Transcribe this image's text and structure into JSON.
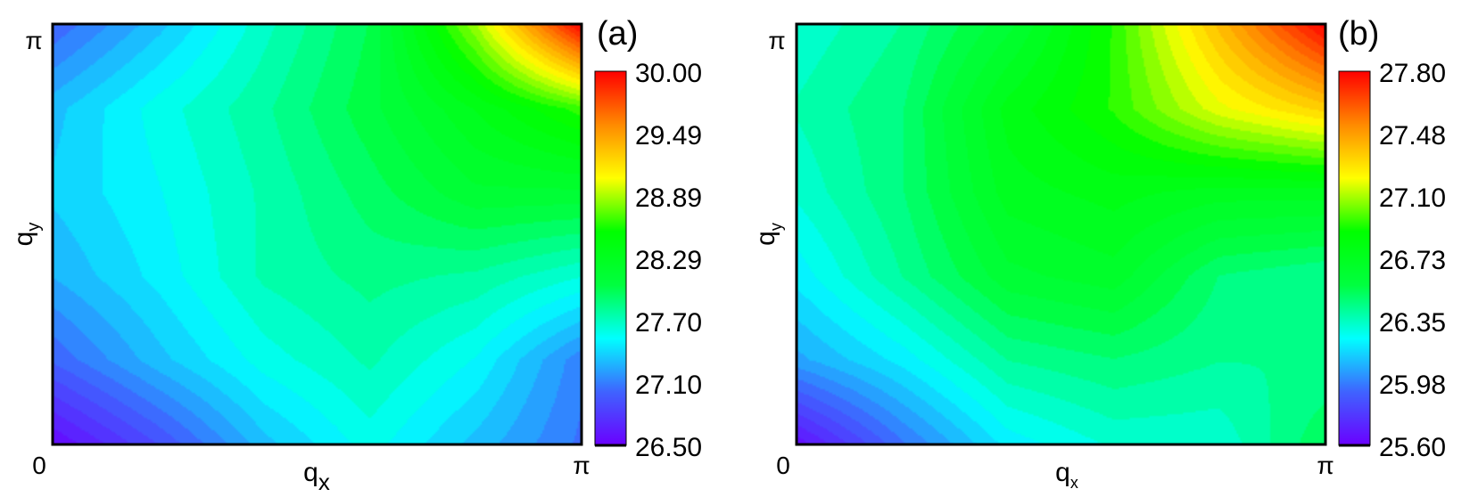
{
  "chart_data": [
    {
      "type": "heatmap",
      "panel_label": "(a)",
      "xlabel": "q",
      "xlabel_sub": "x",
      "ylabel": "q",
      "ylabel_sub": "y",
      "x_ticks": [
        "0",
        "π"
      ],
      "y_ticks": [
        "0",
        "π"
      ],
      "xlim": [
        0,
        3.1416
      ],
      "ylim": [
        0,
        3.1416
      ],
      "colorbar_ticks": [
        "30.00",
        "29.49",
        "28.89",
        "28.29",
        "27.70",
        "27.10",
        "26.50"
      ],
      "value_range": [
        26.5,
        30.0
      ],
      "colormap": [
        "#6a00ff",
        "#3f63ff",
        "#00ffff",
        "#00ff3f",
        "#00ff00",
        "#ffff00",
        "#ff8a00",
        "#ff0000"
      ],
      "x": [
        0,
        0.6283,
        1.2566,
        1.885,
        2.5133,
        3.1416
      ],
      "y": [
        0,
        0.6283,
        1.2566,
        1.885,
        2.5133,
        3.1416
      ],
      "z": [
        [
          26.55,
          26.9,
          27.3,
          27.55,
          27.3,
          27.05
        ],
        [
          27.0,
          27.3,
          27.55,
          27.7,
          27.5,
          27.1
        ],
        [
          27.25,
          27.45,
          27.7,
          27.8,
          27.75,
          27.6
        ],
        [
          27.35,
          27.5,
          27.7,
          27.9,
          28.1,
          28.1
        ],
        [
          27.3,
          27.55,
          27.75,
          28.0,
          28.3,
          28.6
        ],
        [
          27.0,
          27.3,
          27.65,
          27.95,
          28.8,
          30.0
        ]
      ]
    },
    {
      "type": "heatmap",
      "panel_label": "(b)",
      "xlabel": "q",
      "xlabel_sub": "x",
      "ylabel": "q",
      "ylabel_sub": "y",
      "x_ticks": [
        "0",
        "π"
      ],
      "y_ticks": [
        "0",
        "π"
      ],
      "xlim": [
        0,
        3.1416
      ],
      "ylim": [
        0,
        3.1416
      ],
      "colorbar_ticks": [
        "27.80",
        "27.48",
        "27.10",
        "26.73",
        "26.35",
        "25.98",
        "25.60"
      ],
      "value_range": [
        25.6,
        27.8
      ],
      "colormap": [
        "#6a00ff",
        "#3f63ff",
        "#00ffff",
        "#00ff3f",
        "#00ff00",
        "#ffff00",
        "#ff8a00",
        "#ff0000"
      ],
      "x": [
        0,
        0.6283,
        1.2566,
        1.885,
        2.5133,
        3.1416
      ],
      "y": [
        0,
        0.6283,
        1.2566,
        1.885,
        2.5133,
        3.1416
      ],
      "z": [
        [
          25.65,
          25.95,
          26.2,
          26.3,
          26.3,
          26.5
        ],
        [
          26.05,
          26.2,
          26.4,
          26.45,
          26.4,
          26.4
        ],
        [
          26.2,
          26.4,
          26.6,
          26.65,
          26.45,
          26.4
        ],
        [
          26.3,
          26.45,
          26.7,
          26.75,
          26.7,
          26.7
        ],
        [
          26.35,
          26.45,
          26.75,
          26.9,
          27.15,
          27.3
        ],
        [
          26.3,
          26.4,
          26.6,
          26.9,
          27.35,
          27.8
        ]
      ]
    }
  ]
}
